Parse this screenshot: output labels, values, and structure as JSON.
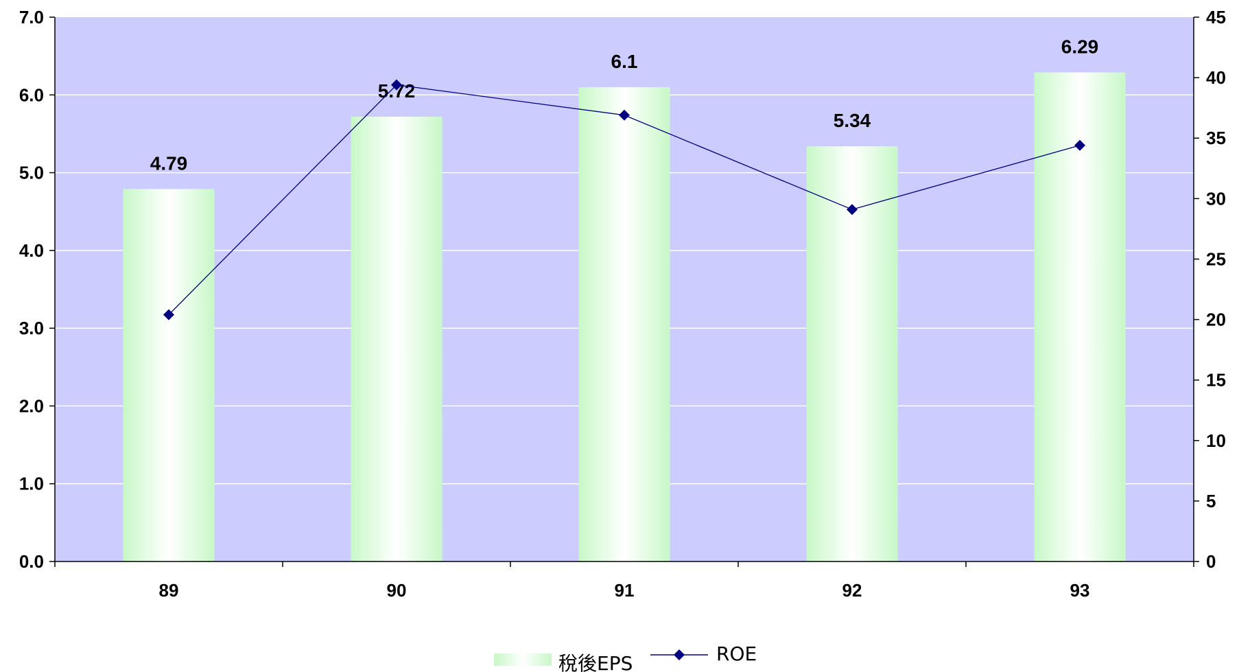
{
  "chart_data": {
    "type": "bar",
    "categories": [
      "89",
      "90",
      "91",
      "92",
      "93"
    ],
    "series": [
      {
        "name": "稅後EPS",
        "type": "bar",
        "axis": "left",
        "values": [
          4.79,
          5.72,
          6.1,
          5.34,
          6.29
        ],
        "data_labels": [
          "4.79",
          "5.72",
          "6.1",
          "5.34",
          "6.29"
        ]
      },
      {
        "name": "ROE",
        "type": "line",
        "axis": "right",
        "marker": "diamond",
        "values": [
          20.4,
          39.4,
          36.9,
          29.1,
          34.4
        ]
      }
    ],
    "y_left": {
      "range": [
        0,
        7
      ],
      "ticks": [
        "0.0",
        "1.0",
        "2.0",
        "3.0",
        "4.0",
        "5.0",
        "6.0",
        "7.0"
      ]
    },
    "y_right": {
      "range": [
        0,
        45
      ],
      "ticks": [
        "0",
        "5",
        "10",
        "15",
        "20",
        "25",
        "30",
        "35",
        "40",
        "45"
      ]
    },
    "grid": "horizontal",
    "legend": "bottom-center",
    "colors": {
      "plot_background": "#ccccff",
      "bar_edge": "#c8f8c8",
      "bar_center": "#ffffff",
      "line": "#000080",
      "gridline": "#ffffff",
      "axis": "#000000"
    }
  }
}
